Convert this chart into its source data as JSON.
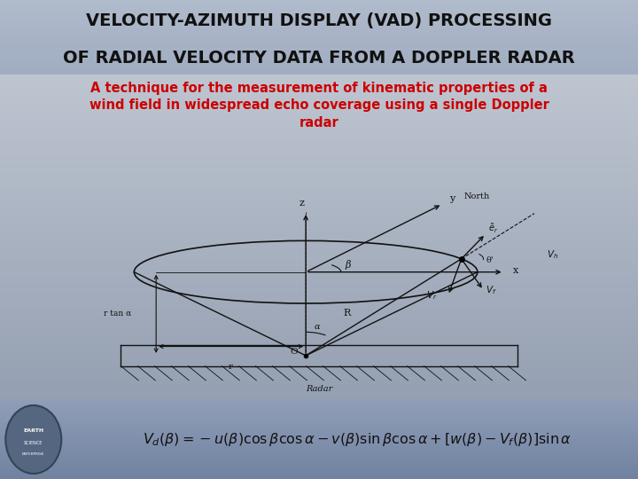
{
  "title_line1": "VELOCITY-AZIMUTH DISPLAY (VAD) PROCESSING",
  "title_line2": "OF RADIAL VELOCITY DATA FROM A DOPPLER RADAR",
  "subtitle": "A technique for the measurement of kinematic properties of a\nwind field in widespread echo coverage using a single Doppler\nradar",
  "title_color": "#111111",
  "subtitle_color": "#cc0000",
  "bg_top": "#c8ced8",
  "bg_bottom": "#8a96aa",
  "formula_bg": "#7a8aa0",
  "formula_color": "#111111",
  "fig_width": 7.2,
  "fig_height": 5.4,
  "dpi": 100
}
